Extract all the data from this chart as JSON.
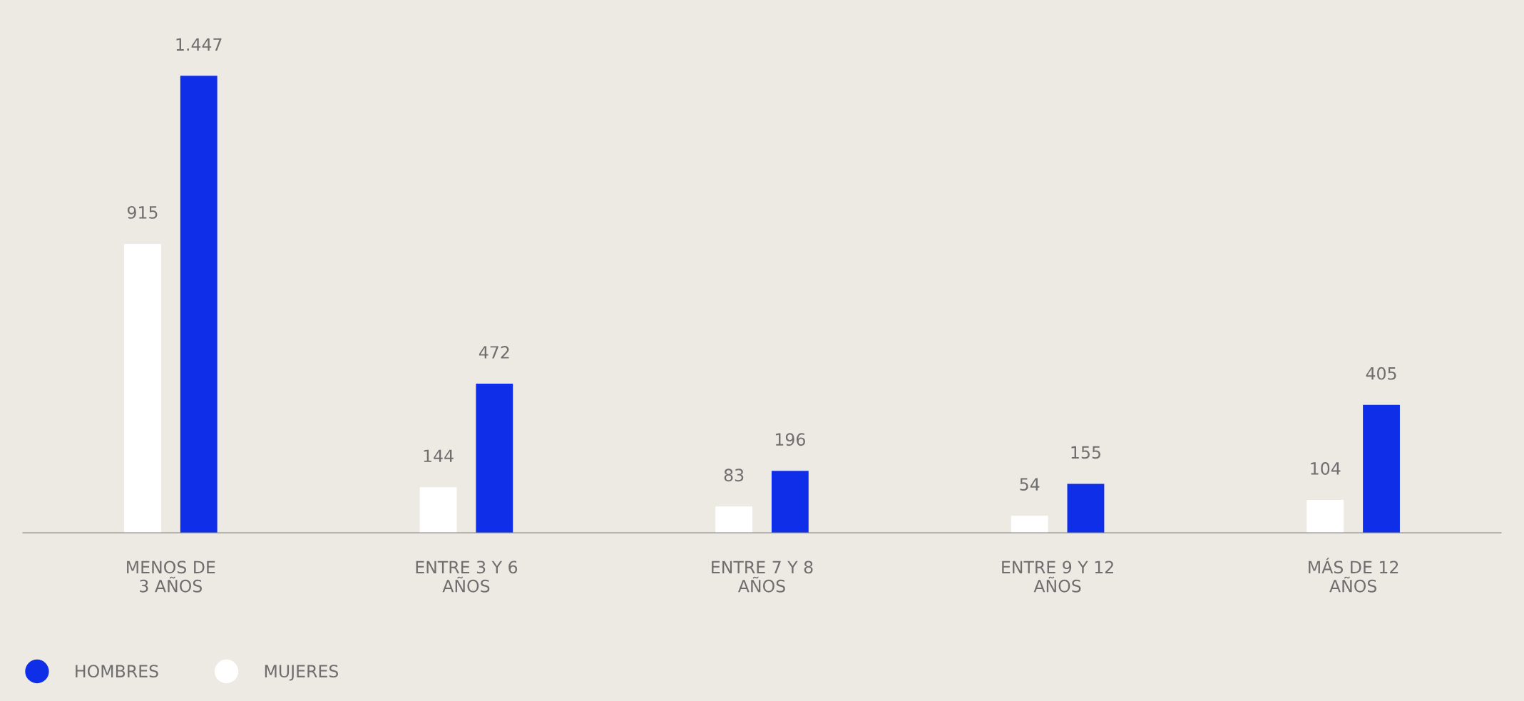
{
  "chart_data": {
    "type": "bar",
    "categories": [
      "MENOS DE\n3 AÑOS",
      "ENTRE 3 Y 6\nAÑOS",
      "ENTRE 7 Y 8\nAÑOS",
      "ENTRE 9 Y 12\nAÑOS",
      "MÁS DE 12\nAÑOS"
    ],
    "series": [
      {
        "name": "MUJERES",
        "color": "#ffffff",
        "values": [
          915,
          144,
          83,
          54,
          104
        ],
        "value_labels": [
          "915",
          "144",
          "83",
          "54",
          "104"
        ]
      },
      {
        "name": "HOMBRES",
        "color": "#0f2ee8",
        "values": [
          1447,
          472,
          196,
          155,
          405
        ],
        "value_labels": [
          "1.447",
          "472",
          "196",
          "155",
          "405"
        ]
      }
    ],
    "legend": "bottom left",
    "grid": false,
    "tick_labels": "x"
  }
}
